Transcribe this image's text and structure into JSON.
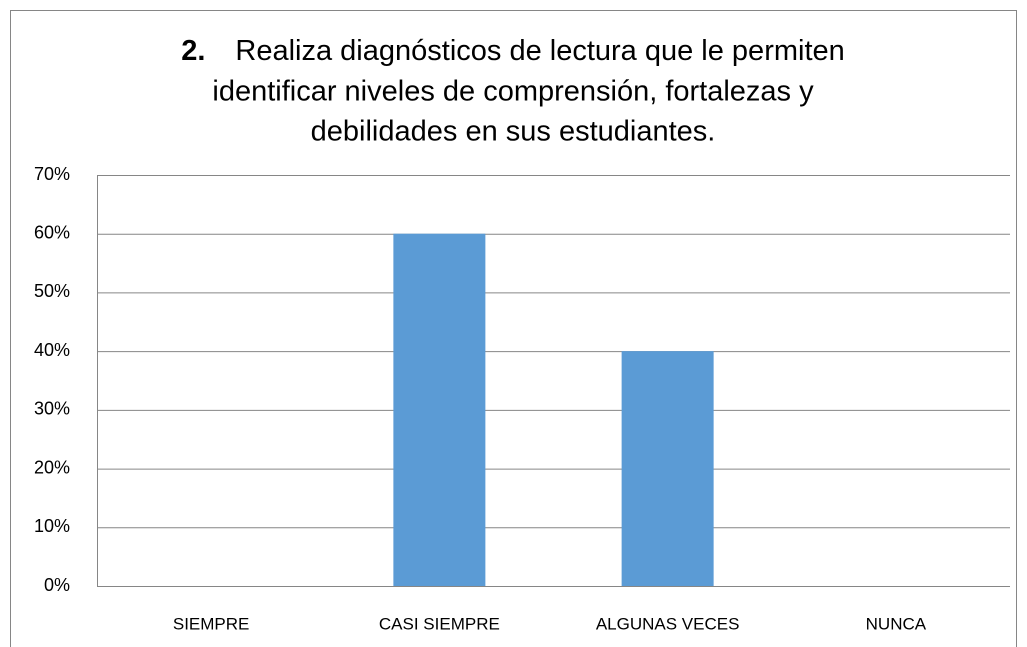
{
  "chart_data": {
    "type": "bar",
    "title_number": "2.",
    "title_lines": [
      "Realiza diagnósticos de lectura que le permiten",
      "identificar niveles de comprensión, fortalezas y",
      "debilidades en  sus estudiantes."
    ],
    "categories": [
      "SIEMPRE",
      "CASI SIEMPRE",
      "ALGUNAS VECES",
      "NUNCA"
    ],
    "values": [
      0,
      60,
      40,
      0
    ],
    "color": "#5b9bd5",
    "ylim": [
      0,
      70
    ],
    "yticks": [
      {
        "value": 0,
        "label": "0%"
      },
      {
        "value": 10,
        "label": "10%"
      },
      {
        "value": 20,
        "label": "20%"
      },
      {
        "value": 30,
        "label": "30%"
      },
      {
        "value": 40,
        "label": "40%"
      },
      {
        "value": 50,
        "label": "50%"
      },
      {
        "value": 60,
        "label": "60%"
      },
      {
        "value": 70,
        "label": "70%"
      }
    ],
    "grid": true
  }
}
